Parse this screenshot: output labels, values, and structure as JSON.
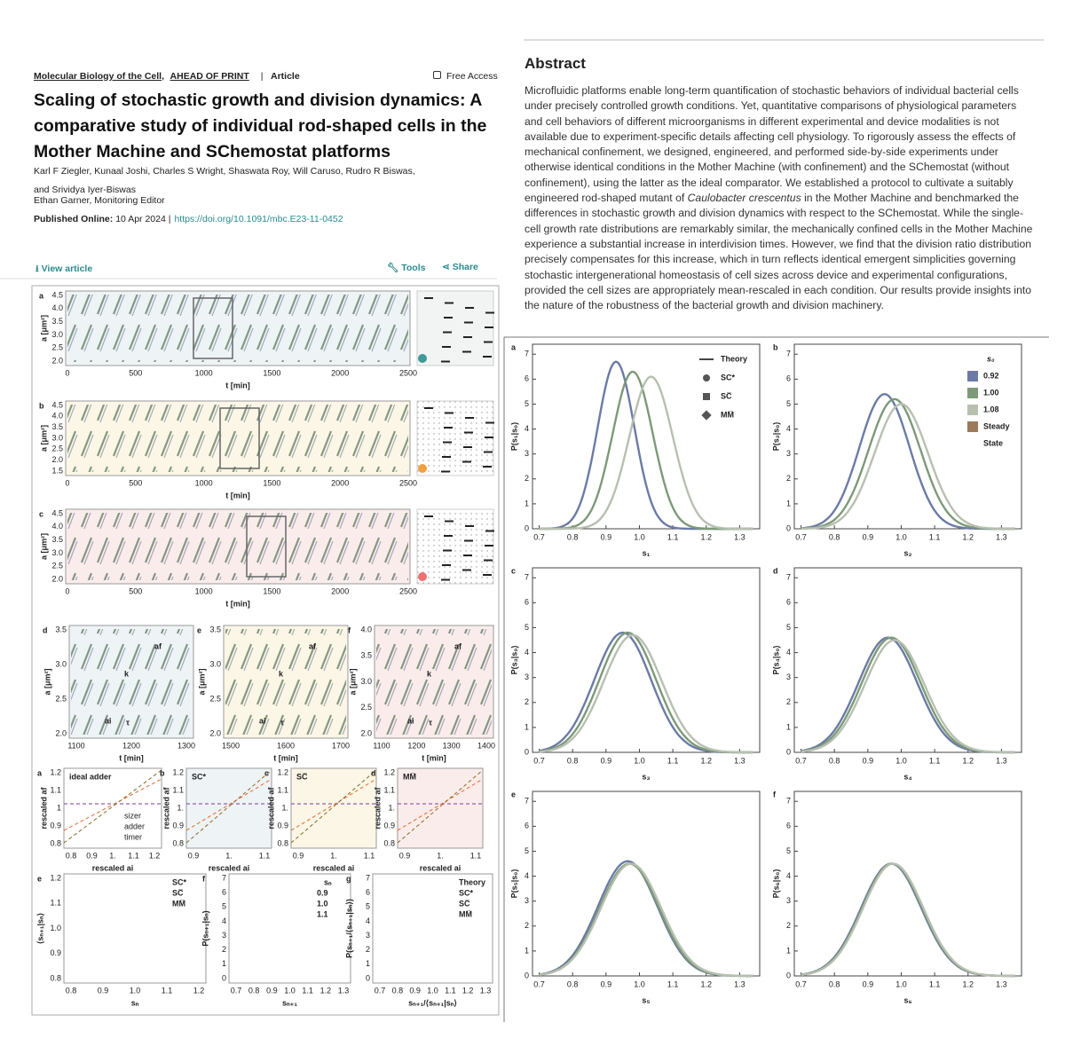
{
  "header": {
    "journal": "Molecular Biology of the Cell,",
    "status": "AHEAD OF PRINT",
    "separator": "|",
    "article_type": "Article",
    "access": "Free Access",
    "title": "Scaling of stochastic growth and division dynamics: A comparative study of individual rod-shaped cells in the Mother Machine and SChemostat platforms",
    "authors": "Karl F Ziegler, Kunaal Joshi, Charles S Wright, Shaswata Roy, Will Caruso, Rudro R Biswas, and Srividya Iyer-Biswas",
    "editor": "Ethan Garner, Monitoring Editor",
    "published_label": "Published Online:",
    "published_date": "10 Apr 2024 |",
    "doi": "https://doi.org/10.1091/mbc.E23-11-0452"
  },
  "toolbar": {
    "view": "View article",
    "tools": "Tools",
    "share": "Share"
  },
  "abstract": {
    "heading": "Abstract",
    "text_before": "Microfluidic platforms enable long-term quantification of stochastic behaviors of individual bacterial cells under precisely controlled growth conditions. Yet, quantitative comparisons of physiological parameters and cell behaviors of different microorganisms in different experimental and device modalities is not available due to experiment-specific details affecting cell physiology. To rigorously assess the effects of mechanical confinement, we designed, engineered, and performed side-by-side experiments under otherwise identical conditions in the Mother Machine (with confinement) and the SChemostat (without confinement), using the latter as the ideal comparator. We established a protocol to cultivate a suitably engineered rod-shaped mutant of",
    "species": "Caulobacter crescentus",
    "text_after": "in the Mother Machine and benchmarked the differences in stochastic growth and division dynamics with respect to the SChemostat. While the single-cell growth rate distributions are remarkably similar, the mechanically confined cells in the Mother Machine experience a substantial increase in interdivision times. However, we find that the division ratio distribution precisely compensates for this increase, which in turn reflects identical emergent simplicities governing stochastic intergenerational homeostasis of cell sizes across device and experimental configurations, provided the cell sizes are appropriately mean-rescaled in each condition. Our results provide insights into the nature of the robustness of the bacterial growth and division machinery."
  },
  "figure_left": {
    "series_panels": [
      {
        "label": "a",
        "ylabel": "a [μm²]",
        "yticks": [
          "4.5",
          "4.0",
          "3.5",
          "3.0",
          "2.5",
          "2.0"
        ],
        "xticks": [
          "0",
          "500",
          "1000",
          "1500",
          "2000",
          "2500"
        ],
        "xlabel": "t [min]"
      },
      {
        "label": "b",
        "ylabel": "a [μm²]",
        "yticks": [
          "4.5",
          "4.0",
          "3.5",
          "3.0",
          "2.5",
          "2.0",
          "1.5"
        ],
        "xticks": [
          "0",
          "500",
          "1000",
          "1500",
          "2000",
          "2500"
        ],
        "xlabel": "t [min]"
      },
      {
        "label": "c",
        "ylabel": "a [μm²]",
        "yticks": [
          "4.5",
          "4.0",
          "3.5",
          "3.0",
          "2.5",
          "2.0"
        ],
        "xticks": [
          "0",
          "500",
          "1000",
          "1500",
          "2000",
          "2500"
        ],
        "xlabel": "t [min]"
      }
    ],
    "zoom_panels": [
      {
        "label": "d",
        "ylabel": "a [μm²]",
        "yticks": [
          "3.5",
          "3.0",
          "2.5",
          "2.0"
        ],
        "xticks": [
          "1100",
          "1200",
          "1300"
        ],
        "xlabel": "t [min]",
        "annotations": [
          "af",
          "k",
          "ai",
          "τ"
        ]
      },
      {
        "label": "e",
        "ylabel": "a [μm²]",
        "yticks": [
          "3.5",
          "3.0",
          "2.5",
          "2.0"
        ],
        "xticks": [
          "1500",
          "1600",
          "1700"
        ],
        "xlabel": "t [min]",
        "annotations": [
          "af",
          "k",
          "ai",
          "τ"
        ]
      },
      {
        "label": "f",
        "ylabel": "a [μm²]",
        "yticks": [
          "4.0",
          "3.5",
          "3.0",
          "2.5",
          "2.0"
        ],
        "xticks": [
          "1100",
          "1200",
          "1300",
          "1400"
        ],
        "xlabel": "t [min]",
        "annotations": [
          "af",
          "k",
          "ai",
          "τ"
        ]
      }
    ],
    "scatter_panels": [
      {
        "label": "a",
        "title": "ideal adder",
        "ylabel": "rescaled af",
        "yticks": [
          "1.2",
          "1.1",
          "1",
          "0.9",
          "0.8"
        ],
        "xticks": [
          "0.8",
          "0.9",
          "1.",
          "1.1",
          "1.2"
        ],
        "xlabel": "rescaled ai",
        "legend": [
          "sizer",
          "adder",
          "timer"
        ]
      },
      {
        "label": "b",
        "title": "SC*",
        "ylabel": "rescaled af",
        "yticks": [
          "1.2",
          "1.1",
          "1.",
          "0.9",
          "0.8"
        ],
        "xticks": [
          "0.9",
          "1.",
          "1.1"
        ],
        "xlabel": "rescaled ai"
      },
      {
        "label": "c",
        "title": "SC̅",
        "ylabel": "rescaled af",
        "yticks": [
          "1.2",
          "1.1",
          "1.",
          "0.9",
          "0.8"
        ],
        "xticks": [
          "0.9",
          "1.",
          "1.1"
        ],
        "xlabel": "rescaled ai"
      },
      {
        "label": "d",
        "title": "MM̅",
        "ylabel": "rescaled af",
        "yticks": [
          "1.2",
          "1.1",
          "1.",
          "0.9",
          "0.8"
        ],
        "xticks": [
          "0.9",
          "1.",
          "1.1"
        ],
        "xlabel": "rescaled ai"
      }
    ],
    "bottom_panels": [
      {
        "label": "e",
        "ylabel": "⟨sₙ₊₁|sₙ⟩",
        "yticks": [
          "1.2",
          "1.1",
          "1.0",
          "0.9",
          "0.8"
        ],
        "xticks": [
          "0.8",
          "0.9",
          "1.0",
          "1.1",
          "1.2"
        ],
        "xlabel": "sₙ",
        "legend": [
          "SC*",
          "SC̅",
          "MM̅"
        ]
      },
      {
        "label": "f",
        "ylabel": "P(sₙ₊₁|sₙ)",
        "yticks": [
          "7",
          "6",
          "5",
          "4",
          "3",
          "2",
          "1",
          "0"
        ],
        "xticks": [
          "0.7",
          "0.8",
          "0.9",
          "1.0",
          "1.1",
          "1.2",
          "1.3"
        ],
        "xlabel": "sₙ₊₁",
        "legend_title": "sₙ",
        "legend": [
          "0.9",
          "1.0",
          "1.1"
        ]
      },
      {
        "label": "g",
        "ylabel": "P(sₙ₊₁/⟨sₙ₊₁|sₙ⟩)",
        "yticks": [
          "7",
          "6",
          "5",
          "4",
          "3",
          "2",
          "1",
          "0"
        ],
        "xticks": [
          "0.7",
          "0.8",
          "0.9",
          "1.0",
          "1.1",
          "1.2",
          "1.3"
        ],
        "xlabel": "sₙ₊₁/⟨sₙ₊₁|sₙ⟩",
        "legend": [
          "Theory",
          "SC*",
          "SC̅",
          "MM̅"
        ]
      }
    ]
  },
  "figure_right": {
    "xticks": [
      "0.7",
      "0.8",
      "0.9",
      "1.0",
      "1.1",
      "1.2",
      "1.3"
    ],
    "yticks": [
      "0",
      "1",
      "2",
      "3",
      "4",
      "5",
      "6",
      "7"
    ],
    "legend_a": [
      "Theory",
      "SC*",
      "SC̅",
      "MM̅"
    ],
    "legend_b_title": "s₀",
    "legend_b": [
      "0.92",
      "1.00",
      "1.08",
      "Steady",
      "State"
    ],
    "panels": [
      {
        "label": "a",
        "ylabel": "P(s₁|s₀)",
        "xlabel": "s₁",
        "curves": [
          {
            "color": "#6b7ba6",
            "center": 0.93,
            "peak": 6.7,
            "width": 0.055
          },
          {
            "color": "#7d9a78",
            "center": 0.98,
            "peak": 6.3,
            "width": 0.06
          },
          {
            "color": "#b7c0b0",
            "center": 1.035,
            "peak": 6.1,
            "width": 0.065
          }
        ]
      },
      {
        "label": "b",
        "ylabel": "P(s₂|s₀)",
        "xlabel": "s₂",
        "curves": [
          {
            "color": "#6b7ba6",
            "center": 0.95,
            "peak": 5.4,
            "width": 0.075
          },
          {
            "color": "#7d9a78",
            "center": 0.98,
            "peak": 5.2,
            "width": 0.078
          },
          {
            "color": "#b7c0b0",
            "center": 1.0,
            "peak": 5.0,
            "width": 0.08
          }
        ]
      },
      {
        "label": "c",
        "ylabel": "P(s₃|s₀)",
        "xlabel": "s₃",
        "curves": [
          {
            "color": "#6b7ba6",
            "center": 0.95,
            "peak": 4.8,
            "width": 0.085
          },
          {
            "color": "#7d9a78",
            "center": 0.965,
            "peak": 4.8,
            "width": 0.085
          },
          {
            "color": "#b7c0b0",
            "center": 0.98,
            "peak": 4.7,
            "width": 0.087
          }
        ]
      },
      {
        "label": "d",
        "ylabel": "P(s₄|s₀)",
        "xlabel": "s₄",
        "curves": [
          {
            "color": "#6b7ba6",
            "center": 0.96,
            "peak": 4.6,
            "width": 0.088
          },
          {
            "color": "#7d9a78",
            "center": 0.97,
            "peak": 4.6,
            "width": 0.088
          },
          {
            "color": "#b7c0b0",
            "center": 0.98,
            "peak": 4.5,
            "width": 0.089
          }
        ]
      },
      {
        "label": "e",
        "ylabel": "P(s₅|s₀)",
        "xlabel": "s₅",
        "curves": [
          {
            "color": "#6b7ba6",
            "center": 0.965,
            "peak": 4.6,
            "width": 0.089
          },
          {
            "color": "#7d9a78",
            "center": 0.97,
            "peak": 4.5,
            "width": 0.089
          },
          {
            "color": "#b7c0b0",
            "center": 0.975,
            "peak": 4.5,
            "width": 0.09
          }
        ]
      },
      {
        "label": "f",
        "ylabel": "P(s₆|s₀)",
        "xlabel": "s₆",
        "curves": [
          {
            "color": "#6b7ba6",
            "center": 0.97,
            "peak": 4.5,
            "width": 0.09
          },
          {
            "color": "#7d9a78",
            "center": 0.973,
            "peak": 4.5,
            "width": 0.09
          },
          {
            "color": "#b7c0b0",
            "center": 0.976,
            "peak": 4.5,
            "width": 0.09
          }
        ]
      }
    ]
  }
}
